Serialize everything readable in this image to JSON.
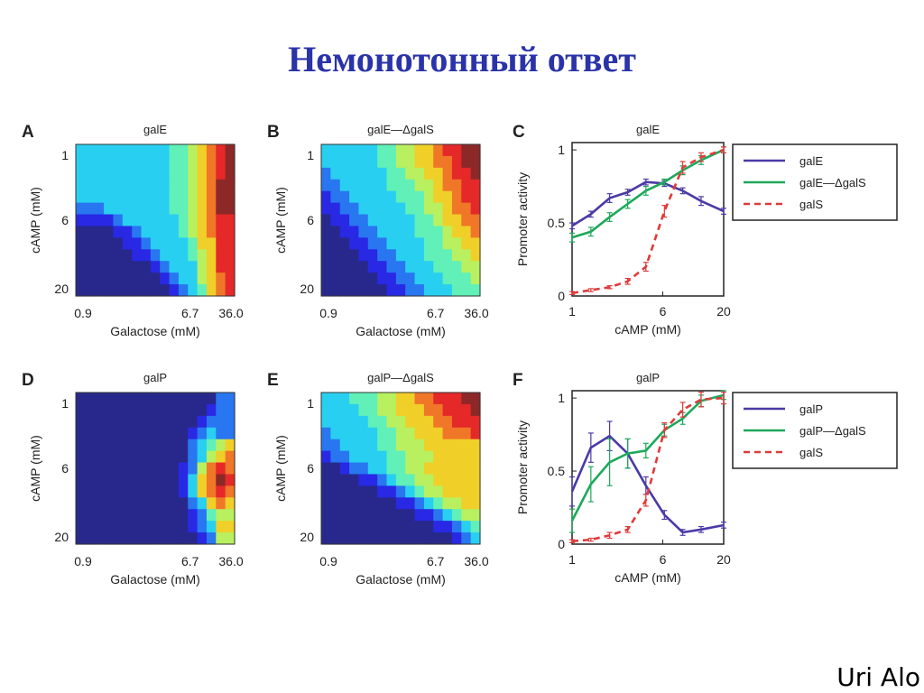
{
  "slide": {
    "title": "Немонотонный ответ",
    "author": "Uri Alo"
  },
  "colors": {
    "title": "#2a33a8",
    "galE_line": "#4a3aa6",
    "mutant_line": "#1ea85a",
    "galS_line": "#e03a3a"
  },
  "chart_data": [
    {
      "id": "A",
      "type": "heatmap",
      "title": "galE",
      "xlabel": "Galactose (mM)",
      "ylabel": "cAMP (mM)",
      "xticks": [
        "0.9",
        "6.7",
        "36.0"
      ],
      "yticks": [
        "1",
        "6",
        "20"
      ],
      "colorscale": "jet",
      "vmin": 0,
      "vmax": 9,
      "z": [
        [
          3,
          3,
          3,
          3,
          3,
          3,
          3,
          3,
          3,
          3,
          4,
          4,
          5,
          6,
          7,
          8,
          9
        ],
        [
          3,
          3,
          3,
          3,
          3,
          3,
          3,
          3,
          3,
          3,
          4,
          4,
          5,
          6,
          7,
          8,
          9
        ],
        [
          3,
          3,
          3,
          3,
          3,
          3,
          3,
          3,
          3,
          3,
          4,
          4,
          5,
          6,
          7,
          8,
          9
        ],
        [
          3,
          3,
          3,
          3,
          3,
          3,
          3,
          3,
          3,
          3,
          4,
          4,
          5,
          6,
          7,
          9,
          9
        ],
        [
          3,
          3,
          3,
          3,
          3,
          3,
          3,
          3,
          3,
          3,
          4,
          4,
          5,
          6,
          7,
          9,
          9
        ],
        [
          2,
          2,
          2,
          3,
          3,
          3,
          3,
          3,
          3,
          3,
          4,
          4,
          5,
          6,
          7,
          9,
          9
        ],
        [
          1,
          1,
          1,
          1,
          2,
          3,
          3,
          3,
          3,
          3,
          3,
          4,
          5,
          6,
          7,
          8,
          8
        ],
        [
          0,
          0,
          0,
          0,
          1,
          1,
          2,
          3,
          3,
          3,
          3,
          4,
          5,
          6,
          7,
          8,
          8
        ],
        [
          0,
          0,
          0,
          0,
          0,
          1,
          1,
          2,
          3,
          3,
          3,
          3,
          4,
          6,
          6,
          8,
          8
        ],
        [
          0,
          0,
          0,
          0,
          0,
          0,
          1,
          1,
          2,
          3,
          3,
          3,
          4,
          5,
          6,
          8,
          8
        ],
        [
          0,
          0,
          0,
          0,
          0,
          0,
          0,
          0,
          1,
          2,
          3,
          3,
          3,
          5,
          6,
          8,
          8
        ],
        [
          0,
          0,
          0,
          0,
          0,
          0,
          0,
          0,
          0,
          1,
          2,
          3,
          3,
          5,
          6,
          7,
          8
        ],
        [
          0,
          0,
          0,
          0,
          0,
          0,
          0,
          0,
          0,
          0,
          1,
          2,
          3,
          4,
          6,
          7,
          8
        ]
      ]
    },
    {
      "id": "B",
      "type": "heatmap",
      "title": "galE—ΔgalS",
      "xlabel": "Galactose (mM)",
      "ylabel": "cAMP (mM)",
      "xticks": [
        "0.9",
        "6.7",
        "36.0"
      ],
      "yticks": [
        "1",
        "6",
        "20"
      ],
      "colorscale": "jet",
      "vmin": 0,
      "vmax": 9,
      "z": [
        [
          3,
          3,
          3,
          3,
          3,
          3,
          4,
          4,
          5,
          5,
          6,
          6,
          7,
          8,
          8,
          9,
          9
        ],
        [
          3,
          3,
          3,
          3,
          3,
          3,
          4,
          4,
          5,
          5,
          6,
          6,
          7,
          7,
          8,
          9,
          9
        ],
        [
          2,
          3,
          3,
          3,
          3,
          3,
          3,
          4,
          4,
          5,
          5,
          6,
          6,
          7,
          8,
          8,
          9
        ],
        [
          2,
          2,
          3,
          3,
          3,
          3,
          3,
          4,
          4,
          4,
          5,
          5,
          6,
          7,
          7,
          8,
          8
        ],
        [
          1,
          2,
          2,
          3,
          3,
          3,
          3,
          3,
          4,
          4,
          4,
          5,
          6,
          6,
          7,
          8,
          8
        ],
        [
          1,
          1,
          2,
          2,
          3,
          3,
          3,
          3,
          3,
          4,
          4,
          5,
          5,
          6,
          7,
          7,
          8
        ],
        [
          0,
          1,
          1,
          2,
          2,
          3,
          3,
          3,
          3,
          3,
          4,
          4,
          5,
          6,
          6,
          7,
          7
        ],
        [
          0,
          0,
          1,
          1,
          2,
          2,
          3,
          3,
          3,
          3,
          4,
          4,
          4,
          5,
          6,
          6,
          7
        ],
        [
          0,
          0,
          0,
          1,
          1,
          2,
          2,
          3,
          3,
          3,
          3,
          4,
          4,
          5,
          5,
          6,
          6
        ],
        [
          0,
          0,
          0,
          0,
          1,
          1,
          2,
          2,
          3,
          3,
          3,
          4,
          4,
          4,
          5,
          5,
          6
        ],
        [
          0,
          0,
          0,
          0,
          0,
          1,
          1,
          2,
          2,
          3,
          3,
          3,
          4,
          4,
          4,
          5,
          5
        ],
        [
          0,
          0,
          0,
          0,
          0,
          0,
          1,
          1,
          2,
          2,
          3,
          3,
          3,
          4,
          4,
          4,
          5
        ],
        [
          0,
          0,
          0,
          0,
          0,
          0,
          0,
          1,
          1,
          2,
          2,
          3,
          3,
          3,
          4,
          4,
          4
        ]
      ]
    },
    {
      "id": "C",
      "type": "line",
      "title": "galE",
      "xlabel": "cAMP (mM)",
      "ylabel": "Promoter activity",
      "xscale": "log",
      "xlim": [
        1,
        20
      ],
      "ylim": [
        0,
        1.05
      ],
      "xticks": [
        1,
        6,
        20
      ],
      "yticks": [
        0,
        0.5,
        1
      ],
      "legend": "outside-right",
      "x": [
        1,
        1.45,
        2.1,
        3.0,
        4.3,
        6.2,
        8.9,
        12.8,
        20
      ],
      "series": [
        {
          "name": "galE",
          "style": "solid",
          "color": "#4a3aa6",
          "values": [
            0.48,
            0.56,
            0.67,
            0.71,
            0.78,
            0.77,
            0.72,
            0.65,
            0.58
          ],
          "err": [
            0.02,
            0.02,
            0.03,
            0.02,
            0.02,
            0.02,
            0.02,
            0.03,
            0.02
          ]
        },
        {
          "name": "galE—ΔgalS",
          "style": "solid",
          "color": "#1ea85a",
          "values": [
            0.4,
            0.44,
            0.54,
            0.63,
            0.72,
            0.78,
            0.86,
            0.93,
            1.0
          ],
          "err": [
            0.03,
            0.03,
            0.03,
            0.03,
            0.03,
            0.02,
            0.03,
            0.03,
            0.02
          ]
        },
        {
          "name": "galS",
          "style": "dashed",
          "color": "#e03a3a",
          "values": [
            0.02,
            0.04,
            0.06,
            0.1,
            0.2,
            0.58,
            0.88,
            0.95,
            1.0
          ],
          "err": [
            0.01,
            0.01,
            0.01,
            0.02,
            0.03,
            0.04,
            0.04,
            0.03,
            0.02
          ]
        }
      ]
    },
    {
      "id": "D",
      "type": "heatmap",
      "title": "galP",
      "xlabel": "Galactose (mM)",
      "ylabel": "cAMP (mM)",
      "xticks": [
        "0.9",
        "6.7",
        "36.0"
      ],
      "yticks": [
        "1",
        "6",
        "20"
      ],
      "colorscale": "jet",
      "vmin": 0,
      "vmax": 9,
      "z": [
        [
          0,
          0,
          0,
          0,
          0,
          0,
          0,
          0,
          0,
          0,
          0,
          0,
          0,
          0,
          0,
          2,
          2
        ],
        [
          0,
          0,
          0,
          0,
          0,
          0,
          0,
          0,
          0,
          0,
          0,
          0,
          0,
          0,
          1,
          2,
          2
        ],
        [
          0,
          0,
          0,
          0,
          0,
          0,
          0,
          0,
          0,
          0,
          0,
          0,
          0,
          1,
          2,
          2,
          2
        ],
        [
          0,
          0,
          0,
          0,
          0,
          0,
          0,
          0,
          0,
          0,
          0,
          0,
          1,
          2,
          3,
          2,
          2
        ],
        [
          0,
          0,
          0,
          0,
          0,
          0,
          0,
          0,
          0,
          0,
          0,
          0,
          2,
          3,
          4,
          5,
          6
        ],
        [
          0,
          0,
          0,
          0,
          0,
          0,
          0,
          0,
          0,
          0,
          0,
          0,
          2,
          3,
          5,
          6,
          7
        ],
        [
          0,
          0,
          0,
          0,
          0,
          0,
          0,
          0,
          0,
          0,
          0,
          1,
          2,
          5,
          7,
          8,
          7
        ],
        [
          0,
          0,
          0,
          0,
          0,
          0,
          0,
          0,
          0,
          0,
          0,
          1,
          3,
          6,
          7,
          9,
          8
        ],
        [
          0,
          0,
          0,
          0,
          0,
          0,
          0,
          0,
          0,
          0,
          0,
          1,
          3,
          6,
          7,
          8,
          7
        ],
        [
          0,
          0,
          0,
          0,
          0,
          0,
          0,
          0,
          0,
          0,
          0,
          0,
          2,
          3,
          6,
          7,
          6
        ],
        [
          0,
          0,
          0,
          0,
          0,
          0,
          0,
          0,
          0,
          0,
          0,
          0,
          1,
          2,
          4,
          5,
          5
        ],
        [
          0,
          0,
          0,
          0,
          0,
          0,
          0,
          0,
          0,
          0,
          0,
          0,
          1,
          2,
          3,
          6,
          6
        ],
        [
          0,
          0,
          0,
          0,
          0,
          0,
          0,
          0,
          0,
          0,
          0,
          0,
          0,
          1,
          2,
          5,
          5
        ]
      ]
    },
    {
      "id": "E",
      "type": "heatmap",
      "title": "galP—ΔgalS",
      "xlabel": "Galactose (mM)",
      "ylabel": "cAMP (mM)",
      "xticks": [
        "0.9",
        "6.7",
        "36.0"
      ],
      "yticks": [
        "1",
        "6",
        "20"
      ],
      "colorscale": "jet",
      "vmin": 0,
      "vmax": 9,
      "z": [
        [
          3,
          3,
          3,
          4,
          4,
          4,
          5,
          5,
          6,
          6,
          7,
          7,
          8,
          8,
          8,
          9,
          9
        ],
        [
          3,
          3,
          3,
          3,
          4,
          4,
          5,
          5,
          6,
          6,
          6,
          7,
          7,
          8,
          8,
          8,
          9
        ],
        [
          3,
          3,
          3,
          3,
          3,
          4,
          4,
          5,
          5,
          6,
          6,
          6,
          7,
          7,
          8,
          8,
          8
        ],
        [
          2,
          3,
          3,
          3,
          3,
          3,
          4,
          4,
          5,
          5,
          6,
          6,
          6,
          7,
          7,
          7,
          8
        ],
        [
          2,
          2,
          3,
          3,
          3,
          3,
          4,
          4,
          5,
          5,
          5,
          6,
          6,
          6,
          6,
          6,
          6
        ],
        [
          1,
          2,
          2,
          3,
          3,
          3,
          3,
          4,
          4,
          5,
          5,
          5,
          6,
          6,
          6,
          6,
          6
        ],
        [
          0,
          0,
          1,
          2,
          2,
          3,
          3,
          4,
          4,
          5,
          5,
          6,
          6,
          6,
          6,
          6,
          6
        ],
        [
          0,
          0,
          0,
          0,
          1,
          1,
          2,
          3,
          4,
          4,
          5,
          5,
          6,
          6,
          6,
          6,
          6
        ],
        [
          0,
          0,
          0,
          0,
          0,
          0,
          1,
          1,
          2,
          3,
          4,
          5,
          5,
          6,
          6,
          6,
          6
        ],
        [
          0,
          0,
          0,
          0,
          0,
          0,
          0,
          0,
          1,
          1,
          2,
          3,
          4,
          5,
          5,
          6,
          6
        ],
        [
          0,
          0,
          0,
          0,
          0,
          0,
          0,
          0,
          0,
          0,
          1,
          1,
          2,
          3,
          4,
          5,
          5
        ],
        [
          0,
          0,
          0,
          0,
          0,
          0,
          0,
          0,
          0,
          0,
          0,
          0,
          1,
          1,
          2,
          3,
          4
        ],
        [
          0,
          0,
          0,
          0,
          0,
          0,
          0,
          0,
          0,
          0,
          0,
          0,
          0,
          0,
          1,
          2,
          3
        ]
      ]
    },
    {
      "id": "F",
      "type": "line",
      "title": "galP",
      "xlabel": "cAMP (mM)",
      "ylabel": "Promoter activity",
      "xscale": "log",
      "xlim": [
        1,
        20
      ],
      "ylim": [
        0,
        1.05
      ],
      "xticks": [
        1,
        6,
        20
      ],
      "yticks": [
        0,
        0.5,
        1
      ],
      "legend": "outside-right",
      "x": [
        1,
        1.45,
        2.1,
        3.0,
        4.3,
        6.2,
        8.9,
        12.8,
        20
      ],
      "series": [
        {
          "name": "galP",
          "style": "solid",
          "color": "#4a3aa6",
          "values": [
            0.36,
            0.66,
            0.74,
            0.62,
            0.4,
            0.2,
            0.08,
            0.1,
            0.13
          ],
          "err": [
            0.1,
            0.1,
            0.1,
            0.1,
            0.06,
            0.03,
            0.02,
            0.02,
            0.02
          ]
        },
        {
          "name": "galP—ΔgalS",
          "style": "solid",
          "color": "#1ea85a",
          "values": [
            0.16,
            0.41,
            0.56,
            0.62,
            0.64,
            0.78,
            0.86,
            0.98,
            1.02
          ],
          "err": [
            0.08,
            0.12,
            0.16,
            0.1,
            0.05,
            0.04,
            0.04,
            0.04,
            0.03
          ]
        },
        {
          "name": "galS",
          "style": "dashed",
          "color": "#e03a3a",
          "values": [
            0.02,
            0.03,
            0.06,
            0.1,
            0.3,
            0.78,
            0.92,
            0.99,
            1.0
          ],
          "err": [
            0.01,
            0.01,
            0.02,
            0.02,
            0.04,
            0.05,
            0.05,
            0.05,
            0.04
          ]
        }
      ]
    }
  ]
}
